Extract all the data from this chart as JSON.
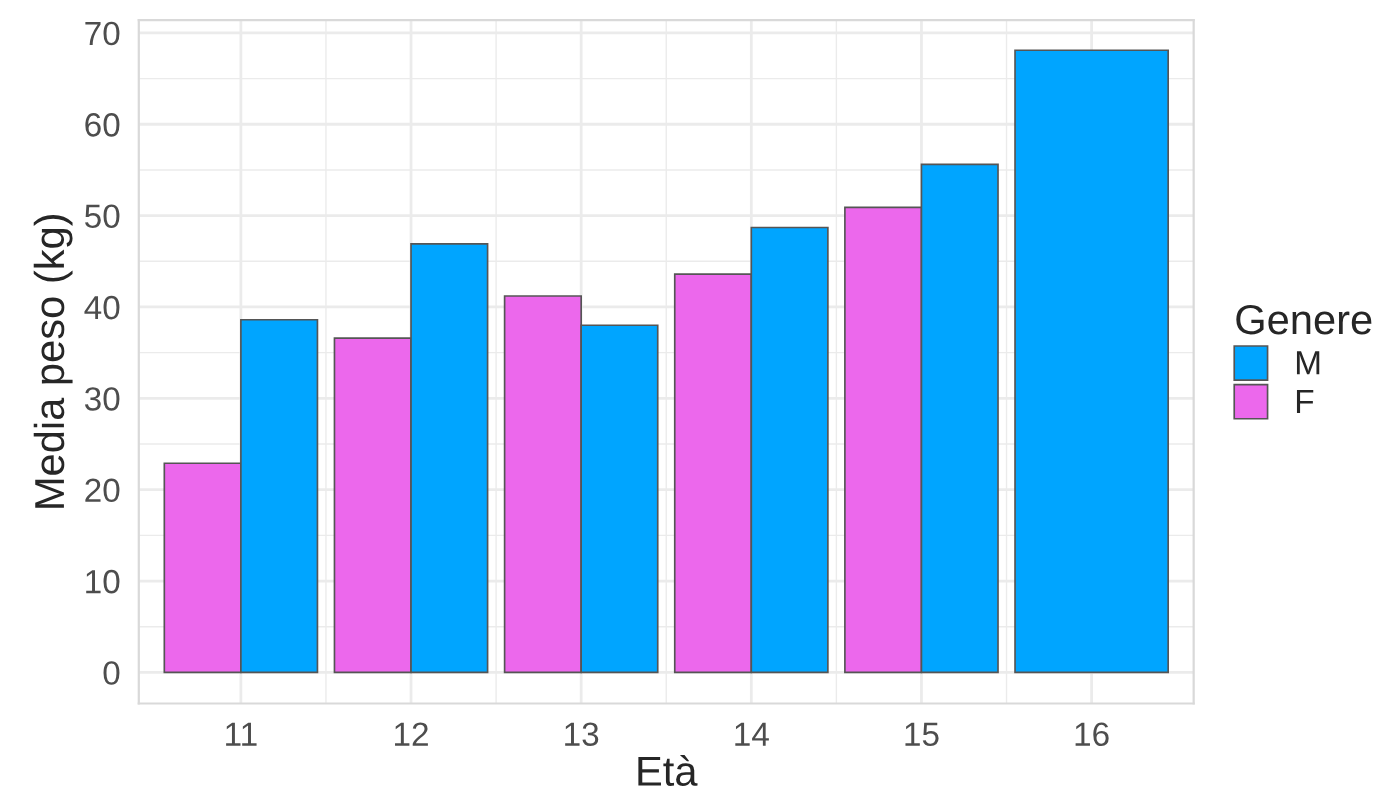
{
  "chart_data": {
    "type": "bar",
    "xlabel": "Età",
    "ylabel": "Media peso (kg)",
    "legend_title": "Genere",
    "categories": [
      "11",
      "12",
      "13",
      "14",
      "15",
      "16"
    ],
    "series": [
      {
        "name": "F",
        "color": "#ec68ec",
        "values": [
          22.9,
          36.6,
          41.2,
          43.6,
          50.9,
          null
        ]
      },
      {
        "name": "M",
        "color": "#00a5ff",
        "values": [
          38.6,
          46.9,
          38.0,
          48.7,
          55.6,
          68.1
        ]
      }
    ],
    "ylim": [
      -3.4,
      71.4
    ],
    "yticks": [
      0,
      10,
      20,
      30,
      40,
      50,
      60,
      70
    ],
    "grid": true,
    "legend": "right"
  }
}
